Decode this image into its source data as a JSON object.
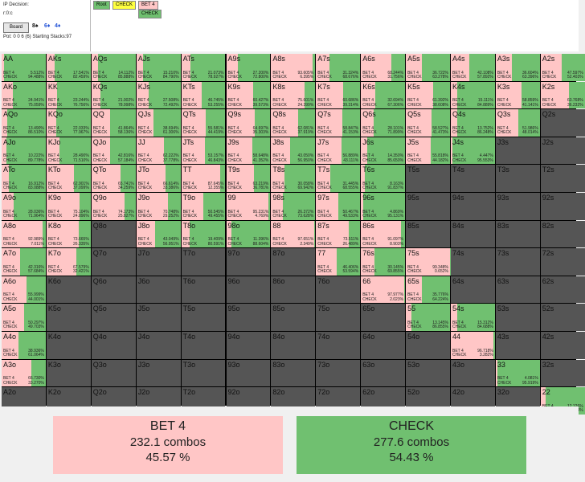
{
  "info": {
    "decision": "IP Decision:",
    "path": "r:0:c",
    "board_button": "Board",
    "board_cards": [
      {
        "text": "8♠",
        "color": "#111111"
      },
      {
        "text": "6♦",
        "color": "#1f4fd6"
      },
      {
        "text": "4♦",
        "color": "#1f4fd6"
      }
    ],
    "pot": "Pot: 0 0 6 (6) Starting Stacks:97"
  },
  "tree": {
    "root": "Root",
    "check": "CHECK",
    "bet4": "BET 4",
    "check2": "CHECK"
  },
  "colors": {
    "bet": "#ffc6c6",
    "check": "#70c070",
    "empty": "#555555"
  },
  "labels": {
    "bet": "BET 4",
    "check": "CHECK"
  },
  "grid": [
    [
      [
        "AA",
        5.512,
        94.488
      ],
      [
        "AKs",
        17.541,
        82.459
      ],
      [
        "AQs",
        14.112,
        85.888
      ],
      [
        "AJs",
        15.21,
        84.79
      ],
      [
        "ATs",
        21.073,
        78.927
      ],
      [
        "A9s",
        27.2,
        72.8
      ],
      [
        "A8s",
        93.605,
        6.395
      ],
      [
        "A7s",
        31.324,
        68.676
      ],
      [
        "A6s",
        68.244,
        31.756
      ],
      [
        "A5s",
        36.722,
        63.278
      ],
      [
        "A4s",
        42.108,
        57.892
      ],
      [
        "A3s",
        36.604,
        63.396
      ],
      [
        "A2s",
        47.597,
        52.403
      ]
    ],
    [
      [
        "AKo",
        24.941,
        75.059
      ],
      [
        "KK",
        23.244,
        76.756
      ],
      [
        "KQs",
        21.002,
        78.998
      ],
      [
        "KJs",
        27.508,
        72.492
      ],
      [
        "KTs",
        46.745,
        53.255
      ],
      [
        "K9s",
        60.427,
        39.573
      ],
      [
        "K8s",
        75.601,
        24.399
      ],
      [
        "K7s",
        60.686,
        39.314
      ],
      [
        "K6s",
        32.694,
        67.306
      ],
      [
        "K5s",
        61.392,
        38.608
      ],
      [
        "K4s",
        15.111,
        84.889
      ],
      [
        "K3s",
        58.859,
        41.141
      ],
      [
        "K2s",
        63.768,
        36.232
      ]
    ],
    [
      [
        "AQo",
        13.49,
        86.51
      ],
      [
        "KQo",
        22.033,
        77.967
      ],
      [
        "QQ",
        41.864,
        58.136
      ],
      [
        "QJs",
        38.694,
        61.306
      ],
      [
        "QTs",
        55.581,
        44.419
      ],
      [
        "Q9s",
        64.697,
        35.303
      ],
      [
        "Q8s",
        62.081,
        37.919
      ],
      [
        "Q7s",
        58.847,
        41.153
      ],
      [
        "Q6s",
        28.101,
        71.899
      ],
      [
        "Q5s",
        58.527,
        41.473
      ],
      [
        "Q4s",
        13.752,
        86.248
      ],
      [
        "Q3s",
        51.986,
        48.014
      ],
      [
        "Q2s",
        null,
        null
      ]
    ],
    [
      [
        "AJo",
        10.222,
        89.778
      ],
      [
        "KJo",
        28.49,
        71.51
      ],
      [
        "QJo",
        42.816,
        57.184
      ],
      [
        "JJ",
        62.222,
        37.778
      ],
      [
        "JTs",
        53.157,
        46.843
      ],
      [
        "J9s",
        58.648,
        41.352
      ],
      [
        "J8s",
        43.05,
        56.95
      ],
      [
        "J7s",
        56.889,
        43.111
      ],
      [
        "J6s",
        14.35,
        85.65
      ],
      [
        "J5s",
        55.818,
        44.182
      ],
      [
        "J4s",
        4.447,
        95.553
      ],
      [
        "J3s",
        null,
        null
      ],
      [
        "J2s",
        null,
        null
      ]
    ],
    [
      [
        "ATo",
        16.912,
        83.088
      ],
      [
        "KTo",
        62.901,
        37.099
      ],
      [
        "QTo",
        65.741,
        34.259
      ],
      [
        "JTo",
        66.614,
        33.386
      ],
      [
        "TT",
        87.645,
        12.355
      ],
      [
        "T9s",
        63.219,
        36.781
      ],
      [
        "T8s",
        30.058,
        69.942
      ],
      [
        "T7s",
        31.445,
        68.555
      ],
      [
        "T6s",
        8.163,
        91.837
      ],
      [
        "T5s",
        null,
        null
      ],
      [
        "T4s",
        null,
        null
      ],
      [
        "T3s",
        null,
        null
      ],
      [
        "T2s",
        null,
        null
      ]
    ],
    [
      [
        "A9o",
        28.036,
        71.964
      ],
      [
        "K9o",
        75.104,
        24.896
      ],
      [
        "Q9o",
        74.173,
        25.827
      ],
      [
        "J9o",
        70.748,
        29.252
      ],
      [
        "T9o",
        50.545,
        49.455
      ],
      [
        "99",
        95.231,
        4.769
      ],
      [
        "98s",
        26.372,
        73.628
      ],
      [
        "97s",
        50.467,
        49.533
      ],
      [
        "96s",
        4.869,
        95.131
      ],
      [
        "95s",
        null,
        null
      ],
      [
        "94s",
        null,
        null
      ],
      [
        "93s",
        null,
        null
      ],
      [
        "92s",
        null,
        null
      ]
    ],
    [
      [
        "A8o",
        92.989,
        7.011
      ],
      [
        "K8o",
        73.665,
        26.335
      ],
      [
        "Q8o",
        null,
        null
      ],
      [
        "J8o",
        43.049,
        56.951
      ],
      [
        "T8o",
        19.409,
        80.591
      ],
      [
        "98o",
        11.396,
        88.604
      ],
      [
        "88",
        97.651,
        2.349
      ],
      [
        "87s",
        73.511,
        26.489
      ],
      [
        "86s",
        91.097,
        8.903
      ],
      [
        "85s",
        null,
        null
      ],
      [
        "84s",
        null,
        null
      ],
      [
        "83s",
        null,
        null
      ],
      [
        "82s",
        null,
        null
      ]
    ],
    [
      [
        "A7o",
        42.316,
        57.684
      ],
      [
        "K7o",
        67.579,
        32.421
      ],
      [
        "Q7o",
        null,
        null
      ],
      [
        "J7o",
        null,
        null
      ],
      [
        "T7o",
        null,
        null
      ],
      [
        "97o",
        null,
        null
      ],
      [
        "87o",
        null,
        null
      ],
      [
        "77",
        46.406,
        53.594
      ],
      [
        "76s",
        30.145,
        69.855
      ],
      [
        "75s",
        99.348,
        0.652
      ],
      [
        "74s",
        null,
        null
      ],
      [
        "73s",
        null,
        null
      ],
      [
        "72s",
        null,
        null
      ]
    ],
    [
      [
        "A6o",
        55.999,
        44.001
      ],
      [
        "K6o",
        null,
        null
      ],
      [
        "Q6o",
        null,
        null
      ],
      [
        "J6o",
        null,
        null
      ],
      [
        "T6o",
        null,
        null
      ],
      [
        "96o",
        null,
        null
      ],
      [
        "86o",
        null,
        null
      ],
      [
        "76o",
        null,
        null
      ],
      [
        "66",
        97.977,
        2.023
      ],
      [
        "65s",
        35.776,
        64.224
      ],
      [
        "64s",
        null,
        null
      ],
      [
        "63s",
        null,
        null
      ],
      [
        "62s",
        null,
        null
      ]
    ],
    [
      [
        "A5o",
        50.297,
        49.703
      ],
      [
        "K5o",
        null,
        null
      ],
      [
        "Q5o",
        null,
        null
      ],
      [
        "J5o",
        null,
        null
      ],
      [
        "T5o",
        null,
        null
      ],
      [
        "95o",
        null,
        null
      ],
      [
        "85o",
        null,
        null
      ],
      [
        "75o",
        null,
        null
      ],
      [
        "65o",
        null,
        null
      ],
      [
        "55",
        13.145,
        86.855
      ],
      [
        "54s",
        15.312,
        84.688
      ],
      [
        "53s",
        null,
        null
      ],
      [
        "52s",
        null,
        null
      ]
    ],
    [
      [
        "A4o",
        38.936,
        61.064
      ],
      [
        "K4o",
        null,
        null
      ],
      [
        "Q4o",
        null,
        null
      ],
      [
        "J4o",
        null,
        null
      ],
      [
        "T4o",
        null,
        null
      ],
      [
        "94o",
        null,
        null
      ],
      [
        "84o",
        null,
        null
      ],
      [
        "74o",
        null,
        null
      ],
      [
        "64o",
        null,
        null
      ],
      [
        "54o",
        null,
        null
      ],
      [
        "44",
        96.718,
        3.282
      ],
      [
        "43s",
        null,
        null
      ],
      [
        "42s",
        null,
        null
      ]
    ],
    [
      [
        "A3o",
        66.73,
        33.27
      ],
      [
        "K3o",
        null,
        null
      ],
      [
        "Q3o",
        null,
        null
      ],
      [
        "J3o",
        null,
        null
      ],
      [
        "T3o",
        null,
        null
      ],
      [
        "93o",
        null,
        null
      ],
      [
        "83o",
        null,
        null
      ],
      [
        "73o",
        null,
        null
      ],
      [
        "63o",
        null,
        null
      ],
      [
        "53o",
        null,
        null
      ],
      [
        "43o",
        null,
        null
      ],
      [
        "33",
        4.081,
        95.919
      ],
      [
        "32s",
        null,
        null
      ]
    ],
    [
      [
        "A2o",
        null,
        null
      ],
      [
        "K2o",
        null,
        null
      ],
      [
        "Q2o",
        null,
        null
      ],
      [
        "J2o",
        null,
        null
      ],
      [
        "T2o",
        null,
        null
      ],
      [
        "92o",
        null,
        null
      ],
      [
        "82o",
        null,
        null
      ],
      [
        "72o",
        null,
        null
      ],
      [
        "62o",
        null,
        null
      ],
      [
        "52o",
        null,
        null
      ],
      [
        "42o",
        null,
        null
      ],
      [
        "32o",
        null,
        null
      ],
      [
        "22",
        12.126,
        87.874
      ]
    ]
  ],
  "summary": {
    "bet": {
      "title": "BET 4",
      "combos": "232.1 combos",
      "pct": "45.57 %"
    },
    "check": {
      "title": "CHECK",
      "combos": "277.6 combos",
      "pct": "54.43 %"
    }
  }
}
